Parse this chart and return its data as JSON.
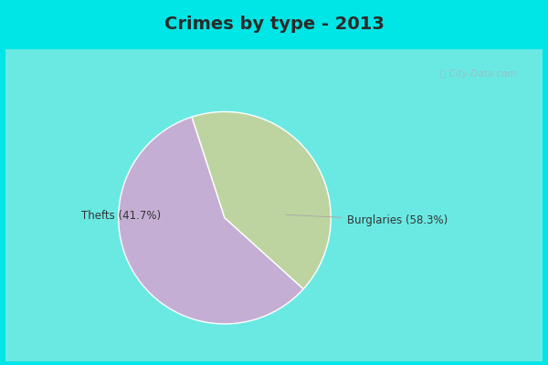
{
  "title": "Crimes by type - 2013",
  "slices": [
    {
      "label": "Burglaries (58.3%)",
      "value": 58.3,
      "color": "#C5AED4"
    },
    {
      "label": "Thefts (41.7%)",
      "value": 41.7,
      "color": "#BDD4A0"
    }
  ],
  "bg_cyan": "#00E5E5",
  "bg_inner": "#E8F5EE",
  "title_fontsize": 14,
  "title_color": "#2a2a2a",
  "watermark": "ⓘ City-Data.com",
  "startangle": 108,
  "label_fontsize": 8.5
}
